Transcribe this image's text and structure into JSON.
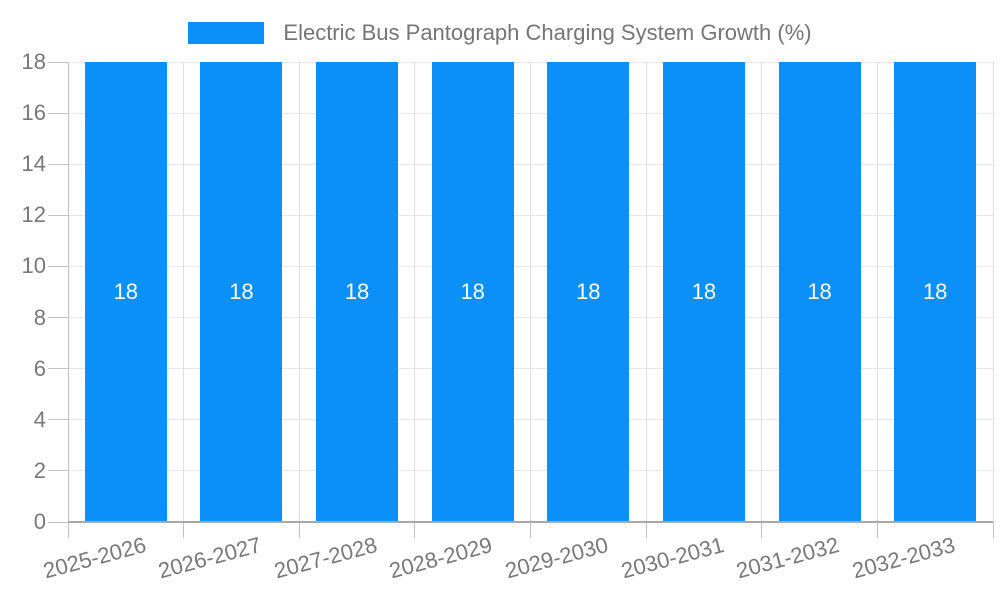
{
  "legend": {
    "label": "Electric Bus Pantograph Charging System Growth (%)"
  },
  "colors": {
    "bar": "#0b90f9",
    "bar_label": "#ffffff",
    "legend_text": "#757575",
    "axis_text": "#787878",
    "gridline": "#e8e8e8",
    "category_line": "#dedede",
    "axis_line": "#a8a8a8",
    "y_axis_line": "#c2c2c2",
    "tick": "#c2c2c2",
    "background": "#ffffff"
  },
  "chart_data": {
    "type": "bar",
    "title": "Electric Bus Pantograph Charging System Growth (%)",
    "categories": [
      "2025-2026",
      "2026-2027",
      "2027-2028",
      "2028-2029",
      "2029-2030",
      "2030-2031",
      "2031-2032",
      "2032-2033"
    ],
    "values": [
      18,
      18,
      18,
      18,
      18,
      18,
      18,
      18
    ],
    "bar_value_labels": [
      "18",
      "18",
      "18",
      "18",
      "18",
      "18",
      "18",
      "18"
    ],
    "yticks": [
      0,
      2,
      4,
      6,
      8,
      10,
      12,
      14,
      16,
      18
    ],
    "ylim": [
      0,
      18
    ],
    "xlabel": "",
    "ylabel": "",
    "grid": true,
    "legend_position": "top",
    "x_label_rotation_deg": -15
  }
}
